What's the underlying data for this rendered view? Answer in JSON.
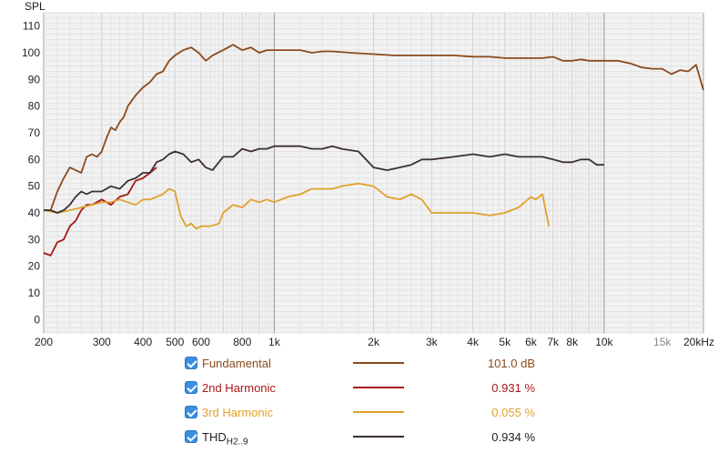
{
  "chart_data": {
    "type": "line",
    "ylabel": "SPL",
    "x_scale": "log",
    "xlim": [
      200,
      20000
    ],
    "ylim": [
      -5,
      115
    ],
    "y_ticks": [
      0,
      10,
      20,
      30,
      40,
      50,
      60,
      70,
      80,
      90,
      100,
      110
    ],
    "x_ticks": [
      {
        "value": 200,
        "label": "200"
      },
      {
        "value": 300,
        "label": "300"
      },
      {
        "value": 400,
        "label": "400"
      },
      {
        "value": 500,
        "label": "500"
      },
      {
        "value": 600,
        "label": "600"
      },
      {
        "value": 800,
        "label": "800"
      },
      {
        "value": 1000,
        "label": "1k"
      },
      {
        "value": 2000,
        "label": "2k"
      },
      {
        "value": 3000,
        "label": "3k"
      },
      {
        "value": 4000,
        "label": "4k"
      },
      {
        "value": 5000,
        "label": "5k"
      },
      {
        "value": 6000,
        "label": "6k"
      },
      {
        "value": 7000,
        "label": "7k"
      },
      {
        "value": 8000,
        "label": "8k"
      },
      {
        "value": 10000,
        "label": "10k"
      },
      {
        "value": 15000,
        "label": "15k",
        "muted": true
      },
      {
        "value": 20000,
        "label": "20kHz"
      }
    ],
    "grid": true,
    "legend_position": "bottom",
    "series": [
      {
        "name": "Fundamental",
        "color": "#8b4a1c",
        "value_label": "101.0 dB",
        "points": [
          [
            200,
            41
          ],
          [
            210,
            41
          ],
          [
            220,
            48
          ],
          [
            230,
            53
          ],
          [
            240,
            57
          ],
          [
            250,
            56
          ],
          [
            260,
            55
          ],
          [
            270,
            61
          ],
          [
            280,
            62
          ],
          [
            290,
            61
          ],
          [
            300,
            63
          ],
          [
            310,
            68
          ],
          [
            320,
            72
          ],
          [
            330,
            71
          ],
          [
            340,
            74
          ],
          [
            350,
            76
          ],
          [
            360,
            80
          ],
          [
            380,
            84
          ],
          [
            400,
            87
          ],
          [
            420,
            89
          ],
          [
            440,
            92
          ],
          [
            460,
            93
          ],
          [
            480,
            97
          ],
          [
            500,
            99
          ],
          [
            530,
            101
          ],
          [
            560,
            102
          ],
          [
            590,
            100
          ],
          [
            620,
            97
          ],
          [
            650,
            99
          ],
          [
            700,
            101
          ],
          [
            750,
            103
          ],
          [
            800,
            101
          ],
          [
            850,
            102
          ],
          [
            900,
            100
          ],
          [
            950,
            101
          ],
          [
            1000,
            101
          ],
          [
            1100,
            101
          ],
          [
            1200,
            101
          ],
          [
            1300,
            100
          ],
          [
            1400,
            100.5
          ],
          [
            1500,
            100.5
          ],
          [
            1700,
            100
          ],
          [
            2000,
            99.5
          ],
          [
            2300,
            99
          ],
          [
            2600,
            99
          ],
          [
            3000,
            99
          ],
          [
            3500,
            99
          ],
          [
            4000,
            98.5
          ],
          [
            4500,
            98.5
          ],
          [
            5000,
            98
          ],
          [
            5500,
            98
          ],
          [
            6000,
            98
          ],
          [
            6500,
            98
          ],
          [
            7000,
            98.5
          ],
          [
            7500,
            97
          ],
          [
            8000,
            97
          ],
          [
            8500,
            97.5
          ],
          [
            9000,
            97
          ],
          [
            10000,
            97
          ],
          [
            11000,
            97
          ],
          [
            12000,
            96
          ],
          [
            13000,
            94.5
          ],
          [
            14000,
            94
          ],
          [
            15000,
            94
          ],
          [
            16000,
            92
          ],
          [
            17000,
            93.5
          ],
          [
            18000,
            93
          ],
          [
            19000,
            95.5
          ],
          [
            20000,
            86
          ]
        ]
      },
      {
        "name": "2nd Harmonic",
        "color": "#a81818",
        "value_label": "0.931 %",
        "points": [
          [
            200,
            25
          ],
          [
            210,
            24
          ],
          [
            220,
            29
          ],
          [
            230,
            30
          ],
          [
            240,
            35
          ],
          [
            250,
            37
          ],
          [
            260,
            41
          ],
          [
            270,
            43
          ],
          [
            280,
            43
          ],
          [
            290,
            44
          ],
          [
            300,
            45
          ],
          [
            310,
            44
          ],
          [
            320,
            43
          ],
          [
            340,
            46
          ],
          [
            360,
            47
          ],
          [
            380,
            52
          ],
          [
            400,
            53
          ],
          [
            420,
            55
          ],
          [
            440,
            57
          ]
        ]
      },
      {
        "name": "3rd Harmonic",
        "color": "#e0a12c",
        "value_label": "0.055 %",
        "points": [
          [
            200,
            41
          ],
          [
            220,
            40
          ],
          [
            240,
            41
          ],
          [
            260,
            42
          ],
          [
            280,
            43
          ],
          [
            300,
            44
          ],
          [
            320,
            44
          ],
          [
            340,
            45
          ],
          [
            360,
            44
          ],
          [
            380,
            43
          ],
          [
            400,
            45
          ],
          [
            420,
            45
          ],
          [
            440,
            46
          ],
          [
            460,
            47
          ],
          [
            480,
            49
          ],
          [
            500,
            48
          ],
          [
            520,
            39
          ],
          [
            540,
            35
          ],
          [
            560,
            36
          ],
          [
            580,
            34
          ],
          [
            600,
            35
          ],
          [
            640,
            35
          ],
          [
            680,
            36
          ],
          [
            700,
            40
          ],
          [
            750,
            43
          ],
          [
            800,
            42
          ],
          [
            850,
            45
          ],
          [
            900,
            44
          ],
          [
            950,
            45
          ],
          [
            1000,
            44
          ],
          [
            1100,
            46
          ],
          [
            1200,
            47
          ],
          [
            1300,
            49
          ],
          [
            1400,
            49
          ],
          [
            1500,
            49
          ],
          [
            1600,
            50
          ],
          [
            1800,
            51
          ],
          [
            2000,
            50
          ],
          [
            2200,
            46
          ],
          [
            2400,
            45
          ],
          [
            2600,
            47
          ],
          [
            2800,
            45
          ],
          [
            3000,
            40
          ],
          [
            3500,
            40
          ],
          [
            4000,
            40
          ],
          [
            4500,
            39
          ],
          [
            5000,
            40
          ],
          [
            5500,
            42
          ],
          [
            6000,
            46
          ],
          [
            6200,
            45
          ],
          [
            6500,
            47
          ],
          [
            6800,
            35
          ]
        ]
      },
      {
        "name": "THD",
        "name_sub": "H2..9",
        "color": "#3d3030",
        "value_label": "0.934 %",
        "points": [
          [
            200,
            41
          ],
          [
            210,
            41
          ],
          [
            220,
            40
          ],
          [
            230,
            41
          ],
          [
            240,
            43
          ],
          [
            250,
            46
          ],
          [
            260,
            48
          ],
          [
            270,
            47
          ],
          [
            280,
            48
          ],
          [
            300,
            48
          ],
          [
            320,
            50
          ],
          [
            340,
            49
          ],
          [
            360,
            52
          ],
          [
            380,
            53
          ],
          [
            400,
            55
          ],
          [
            420,
            55
          ],
          [
            440,
            59
          ],
          [
            460,
            60
          ],
          [
            480,
            62
          ],
          [
            500,
            63
          ],
          [
            530,
            62
          ],
          [
            560,
            59
          ],
          [
            590,
            60
          ],
          [
            620,
            57
          ],
          [
            650,
            56
          ],
          [
            700,
            61
          ],
          [
            750,
            61
          ],
          [
            800,
            64
          ],
          [
            850,
            63
          ],
          [
            900,
            64
          ],
          [
            950,
            64
          ],
          [
            1000,
            65
          ],
          [
            1100,
            65
          ],
          [
            1200,
            65
          ],
          [
            1300,
            64
          ],
          [
            1400,
            64
          ],
          [
            1500,
            65
          ],
          [
            1600,
            64
          ],
          [
            1800,
            63
          ],
          [
            2000,
            57
          ],
          [
            2200,
            56
          ],
          [
            2400,
            57
          ],
          [
            2600,
            58
          ],
          [
            2800,
            60
          ],
          [
            3000,
            60
          ],
          [
            3500,
            61
          ],
          [
            4000,
            62
          ],
          [
            4500,
            61
          ],
          [
            5000,
            62
          ],
          [
            5500,
            61
          ],
          [
            6000,
            61
          ],
          [
            6500,
            61
          ],
          [
            7000,
            60
          ],
          [
            7500,
            59
          ],
          [
            8000,
            59
          ],
          [
            8500,
            60
          ],
          [
            9000,
            60
          ],
          [
            9500,
            58
          ],
          [
            10000,
            58
          ]
        ]
      }
    ]
  }
}
